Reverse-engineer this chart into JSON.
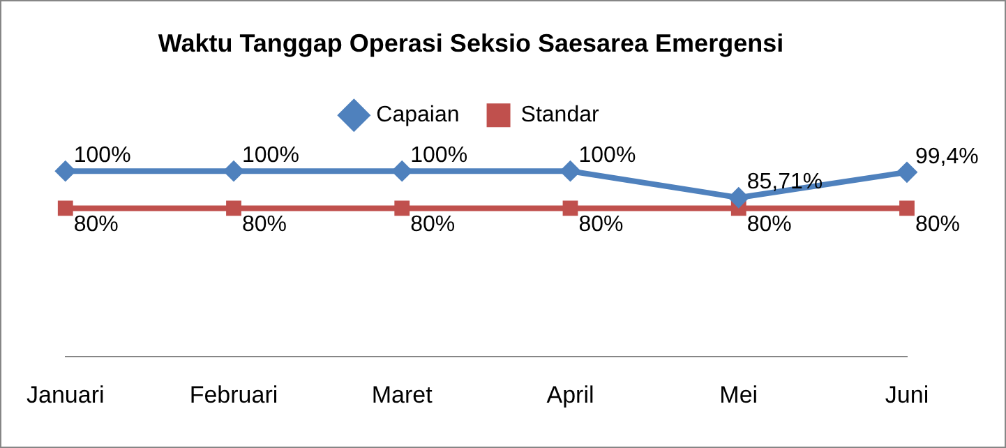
{
  "chart_data": {
    "type": "line",
    "title": "Waktu Tanggap Operasi Seksio Saesarea Emergensi",
    "categories": [
      "Januari",
      "Februari",
      "Maret",
      "April",
      "Mei",
      "Juni"
    ],
    "series": [
      {
        "name": "Capaian",
        "color": "#4f81bd",
        "marker": "diamond",
        "values": [
          100,
          100,
          100,
          100,
          85.71,
          99.4
        ],
        "value_labels": [
          "100%",
          "100%",
          "100%",
          "100%",
          "85,71%",
          "99,4%"
        ]
      },
      {
        "name": "Standar",
        "color": "#c0504d",
        "marker": "square",
        "values": [
          80,
          80,
          80,
          80,
          80,
          80
        ],
        "value_labels": [
          "80%",
          "80%",
          "80%",
          "80%",
          "80%",
          "80%"
        ]
      }
    ],
    "tick_labels": "x",
    "grid": false,
    "legend": "top"
  }
}
